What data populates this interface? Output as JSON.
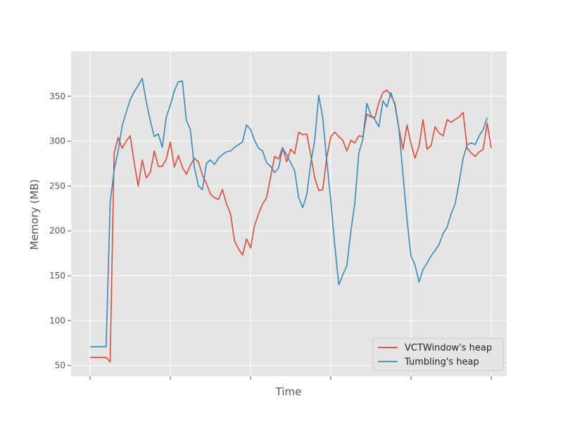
{
  "chart_data": {
    "type": "line",
    "title": "",
    "xlabel": "Time",
    "ylabel": "Memory (MB)",
    "ylim": [
      38,
      400
    ],
    "yticks": [
      50,
      100,
      150,
      200,
      250,
      300,
      350
    ],
    "xticks_count": 6,
    "grid": true,
    "legend_position": "lower-right",
    "background": "#e5e5e5",
    "series": [
      {
        "name": "VCTWindow's heap",
        "color": "#e24a33",
        "values": [
          59,
          59,
          59,
          59,
          59,
          54,
          287,
          304,
          292,
          300,
          306,
          276,
          250,
          279,
          259,
          265,
          289,
          272,
          272,
          280,
          299,
          271,
          284,
          271,
          263,
          273,
          281,
          277,
          262,
          253,
          241,
          237,
          235,
          246,
          230,
          219,
          189,
          180,
          173,
          191,
          181,
          206,
          219,
          230,
          237,
          260,
          283,
          280,
          293,
          277,
          291,
          286,
          310,
          307,
          308,
          285,
          259,
          245,
          246,
          282,
          305,
          310,
          305,
          301,
          289,
          301,
          298,
          306,
          305,
          330,
          327,
          326,
          343,
          354,
          357,
          351,
          342,
          314,
          291,
          318,
          297,
          281,
          294,
          324,
          291,
          295,
          316,
          309,
          306,
          324,
          321,
          324,
          327,
          332,
          292,
          287,
          283,
          288,
          291,
          320,
          292
        ]
      },
      {
        "name": "Tumbling's heap",
        "color": "#348abd",
        "values": [
          71,
          71,
          71,
          71,
          71,
          231,
          268,
          289,
          317,
          332,
          346,
          355,
          362,
          370,
          344,
          323,
          305,
          308,
          293,
          327,
          340,
          356,
          366,
          367,
          323,
          313,
          271,
          250,
          246,
          275,
          279,
          274,
          281,
          285,
          288,
          289,
          293,
          296,
          299,
          318,
          313,
          301,
          292,
          289,
          276,
          272,
          265,
          270,
          292,
          285,
          276,
          267,
          237,
          226,
          240,
          275,
          301,
          351,
          326,
          278,
          234,
          184,
          140,
          151,
          161,
          199,
          231,
          287,
          302,
          342,
          329,
          324,
          316,
          345,
          338,
          354,
          340,
          313,
          263,
          213,
          172,
          162,
          143,
          157,
          164,
          172,
          178,
          185,
          197,
          204,
          219,
          230,
          254,
          281,
          296,
          298,
          296,
          306,
          313,
          326
        ]
      }
    ]
  }
}
